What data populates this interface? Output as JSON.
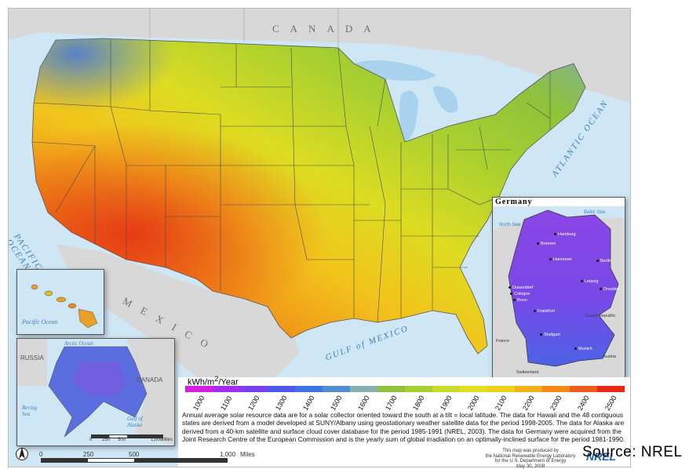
{
  "map": {
    "countries": {
      "canada": "CANADA",
      "mexico": "MEXICO",
      "russia": "RUSSIA",
      "canada_alaska": "CANADA"
    },
    "oceans": {
      "pacific": "PACIFIC OCEAN",
      "atlantic": "ATLANTIC OCEAN",
      "gulf": "GULF of MEXICO",
      "pacific_hawaii": "Pacific Ocean",
      "arctic": "Arctic Ocean",
      "bering": "Bering Sea",
      "gulf_alaska": "Gulf of Alaska"
    },
    "alaska_scale": {
      "labels": [
        "0",
        "250",
        "500",
        "1,000"
      ],
      "unit": "Miles"
    },
    "main_scale": {
      "labels": [
        "0",
        "250",
        "500",
        "1,000"
      ],
      "unit": "Miles"
    },
    "colors": {
      "low": "#7a3fd6",
      "high": "#e8361a",
      "water": "#cfe6f5",
      "land_outside": "#d8d8d8"
    }
  },
  "germany": {
    "title": "Germany",
    "seas": {
      "north": "North Sea",
      "baltic": "Baltic Sea"
    },
    "cities": [
      "Hamburg",
      "Bremen",
      "Hannover",
      "Berlin",
      "Leipzig",
      "Dresden",
      "Dusseldorf",
      "Cologne",
      "Bonn",
      "Frankfurt",
      "Stuttgart",
      "Munich"
    ],
    "neighbors": {
      "czech": "Czech Republic",
      "france": "France",
      "austria": "Austria",
      "switzerland": "Switzerland"
    }
  },
  "legend": {
    "title_prefix": "kWh/m",
    "title_sup": "2",
    "title_suffix": "/Year",
    "ticks": [
      "1000",
      "1100",
      "1200",
      "1300",
      "1400",
      "1500",
      "1600",
      "1700",
      "1800",
      "1900",
      "2000",
      "2100",
      "2200",
      "2300",
      "2400",
      "2500"
    ],
    "colors": [
      "#d21fe0",
      "#a52df0",
      "#7a3fe8",
      "#4f56ec",
      "#3f74e6",
      "#4f8fd0",
      "#8ab0b0",
      "#8fc23a",
      "#a8d030",
      "#c8dc28",
      "#e2e020",
      "#f0d018",
      "#f4b018",
      "#f48818",
      "#ee5a18",
      "#e82a14"
    ]
  },
  "caption": "Annual average solar resource data are for a solar collector oriented toward the south at a tilt = local latitude. The data for Hawaii and the 48 contiguous states are derived from a model developed at SUNY/Albany using geostationary weather satellite data for the period 1998-2005. The data for Alaska are derived from a 40-km satellite and surface cloud cover database for the period 1985-1991 (NREL, 2003). The data for Germany were acquired from the Joint Research Centre of the European Commission and is the yearly sum of global irradiation on an optimally-inclined surface for the period 1981-1990.",
  "credit": [
    "This map was produced by",
    "the National Renewable Energy Laboratory",
    "for the U.S. Department of Energy",
    "May 30, 2008"
  ],
  "source": "Source: NREL",
  "nrel_logo": "NREL"
}
